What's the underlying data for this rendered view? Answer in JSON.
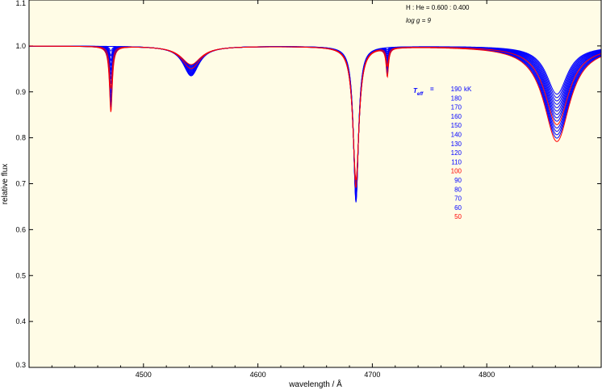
{
  "chart_data": {
    "type": "line",
    "title": "",
    "xlabel": "wavelength / Å",
    "ylabel": "relative flux",
    "xlim": [
      4400,
      4900
    ],
    "ylim": [
      0.3,
      1.1
    ],
    "x_ticks": [
      4500,
      4600,
      4700,
      4800
    ],
    "y_ticks": [
      0.3,
      0.4,
      0.5,
      0.6,
      0.7,
      0.8,
      0.9,
      1.0,
      1.1
    ],
    "y_tick_labels": [
      "0.3",
      "0.4",
      "0.5",
      "0.6",
      "0.7",
      "0.8",
      "0.9",
      "1.0",
      "1.1"
    ],
    "background": "#fffce6",
    "annotations": [
      "H : He = 0.600 : 0.400",
      "log g  =  9"
    ],
    "legend": {
      "placement": "right-middle",
      "title": "T",
      "title_sub": "eff",
      "title_eq": "=",
      "unit": "kK",
      "entries": [
        {
          "label": "190",
          "color": "#0000ff"
        },
        {
          "label": "180",
          "color": "#0000ff"
        },
        {
          "label": "170",
          "color": "#0000ff"
        },
        {
          "label": "160",
          "color": "#0000ff"
        },
        {
          "label": "150",
          "color": "#0000ff"
        },
        {
          "label": "140",
          "color": "#0000ff"
        },
        {
          "label": "130",
          "color": "#0000ff"
        },
        {
          "label": "120",
          "color": "#0000ff"
        },
        {
          "label": "110",
          "color": "#0000ff"
        },
        {
          "label": "100",
          "color": "#ff0000"
        },
        {
          "label": "90",
          "color": "#0000ff"
        },
        {
          "label": "80",
          "color": "#0000ff"
        },
        {
          "label": "70",
          "color": "#0000ff"
        },
        {
          "label": "60",
          "color": "#0000ff"
        },
        {
          "label": "50",
          "color": "#ff0000"
        }
      ]
    },
    "line_profiles": [
      {
        "center": 4471.5,
        "depth_hot": 0.0,
        "depth_cool": 0.143,
        "width": 1.2
      },
      {
        "center": 4541.6,
        "depth_hot": 0.065,
        "depth_cool": 0.04,
        "width": 8.5
      },
      {
        "center": 4685.7,
        "depth_hot": 0.34,
        "depth_cool": 0.29,
        "width": 2.6
      },
      {
        "center": 4713.1,
        "depth_hot": 0.0,
        "depth_cool": 0.062,
        "width": 1.0
      },
      {
        "center": 4861.3,
        "depth_hot": 0.105,
        "depth_cool": 0.208,
        "width": 11.0
      }
    ],
    "series": [
      {
        "name": "190",
        "teff_kK": 190,
        "color": "#0000ff"
      },
      {
        "name": "180",
        "teff_kK": 180,
        "color": "#0000ff"
      },
      {
        "name": "170",
        "teff_kK": 170,
        "color": "#0000ff"
      },
      {
        "name": "160",
        "teff_kK": 160,
        "color": "#0000ff"
      },
      {
        "name": "150",
        "teff_kK": 150,
        "color": "#0000ff"
      },
      {
        "name": "140",
        "teff_kK": 140,
        "color": "#0000ff"
      },
      {
        "name": "130",
        "teff_kK": 130,
        "color": "#0000ff"
      },
      {
        "name": "120",
        "teff_kK": 120,
        "color": "#0000ff"
      },
      {
        "name": "110",
        "teff_kK": 110,
        "color": "#0000ff"
      },
      {
        "name": "100",
        "teff_kK": 100,
        "color": "#ff0000"
      },
      {
        "name": "90",
        "teff_kK": 90,
        "color": "#0000ff"
      },
      {
        "name": "80",
        "teff_kK": 80,
        "color": "#0000ff"
      },
      {
        "name": "70",
        "teff_kK": 70,
        "color": "#0000ff"
      },
      {
        "name": "60",
        "teff_kK": 60,
        "color": "#0000ff"
      },
      {
        "name": "50",
        "teff_kK": 50,
        "color": "#ff0000"
      }
    ]
  }
}
